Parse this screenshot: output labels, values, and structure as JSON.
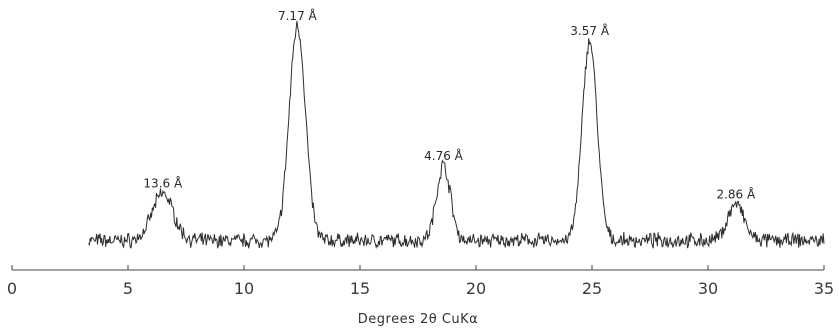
{
  "chart_data": {
    "type": "line",
    "xlabel": "Degrees 2θ CuKα",
    "xlim": [
      0,
      35
    ],
    "x_ticks": [
      {
        "value": 0,
        "label": "0"
      },
      {
        "value": 5,
        "label": "5"
      },
      {
        "value": 10,
        "label": "10"
      },
      {
        "value": 15,
        "label": "15"
      },
      {
        "value": 20,
        "label": "20"
      },
      {
        "value": 25,
        "label": "25"
      },
      {
        "value": 30,
        "label": "30"
      },
      {
        "value": 35,
        "label": "35"
      }
    ],
    "peaks": [
      {
        "x": 6.5,
        "label": "13.6 Å",
        "height": 0.22
      },
      {
        "x": 12.3,
        "label": "7.17 Å",
        "height": 1.0
      },
      {
        "x": 18.6,
        "label": "4.76 Å",
        "height": 0.35
      },
      {
        "x": 24.9,
        "label": "3.57 Å",
        "height": 0.93
      },
      {
        "x": 31.2,
        "label": "2.86 Å",
        "height": 0.17
      }
    ],
    "series": [
      {
        "x_start": 3.3,
        "x_end": 35.0,
        "baseline": 0.03,
        "peak_widths": [
          0.45,
          0.35,
          0.3,
          0.32,
          0.35
        ]
      }
    ],
    "colors": {
      "line": "#2e2e2e",
      "axis": "#444444"
    }
  }
}
